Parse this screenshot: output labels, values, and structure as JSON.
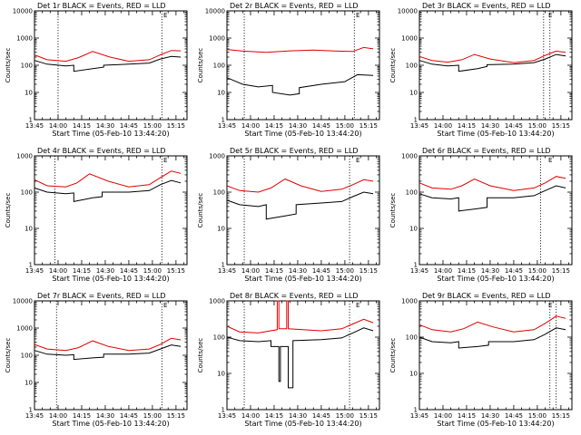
{
  "chart_data": [
    {
      "type": "line",
      "title": "Det 1r BLACK = Events, RED = LLD",
      "corner_label": "E",
      "xlabel": "Start Time (05-Feb-10 13:44:20)",
      "ylabel": "Counts/sec",
      "x_ticks": [
        "13:45",
        "14:00",
        "14:15",
        "14:30",
        "14:45",
        "15:00",
        "15:15"
      ],
      "y_ticks": [
        "1",
        "10",
        "100",
        "1000",
        "10000"
      ],
      "ylim": [
        1,
        10000
      ],
      "y_scale": "log",
      "dotted_vlines": [
        "14:00",
        "15:06"
      ],
      "series": [
        {
          "name": "Events",
          "color": "#000000",
          "x": [
            "13:45",
            "13:53",
            "14:05",
            "14:10",
            "14:10",
            "14:22",
            "14:29",
            "14:29",
            "14:45",
            "14:58",
            "15:05",
            "15:12",
            "15:18"
          ],
          "y": [
            150,
            110,
            95,
            100,
            60,
            75,
            85,
            100,
            110,
            120,
            170,
            210,
            200
          ]
        },
        {
          "name": "LLD",
          "color": "#e00000",
          "x": [
            "13:45",
            "13:53",
            "14:05",
            "14:13",
            "14:22",
            "14:33",
            "14:45",
            "14:58",
            "15:05",
            "15:12",
            "15:18"
          ],
          "y": [
            240,
            160,
            140,
            190,
            320,
            200,
            140,
            160,
            240,
            350,
            340
          ]
        }
      ]
    },
    {
      "type": "line",
      "title": "Det 2r BLACK = Events, RED = LLD",
      "corner_label": "E",
      "xlabel": "Start Time (05-Feb-10 13:44:20)",
      "ylabel": "Counts/sec",
      "x_ticks": [
        "13:45",
        "14:00",
        "14:15",
        "14:30",
        "14:45",
        "15:00",
        "15:15"
      ],
      "y_ticks": [
        "1",
        "10",
        "100",
        "1000",
        "10000"
      ],
      "ylim": [
        1,
        10000
      ],
      "y_scale": "log",
      "dotted_vlines": [
        "13:56",
        "15:06"
      ],
      "series": [
        {
          "name": "Events",
          "color": "#000000",
          "x": [
            "13:45",
            "13:55",
            "14:05",
            "14:14",
            "14:14",
            "14:25",
            "14:31",
            "14:31",
            "14:45",
            "15:00",
            "15:08",
            "15:18"
          ],
          "y": [
            35,
            20,
            16,
            18,
            10,
            8,
            9,
            15,
            20,
            25,
            45,
            42
          ]
        },
        {
          "name": "LLD",
          "color": "#e00000",
          "x": [
            "13:45",
            "13:55",
            "14:10",
            "14:25",
            "14:40",
            "14:55",
            "15:05",
            "15:12",
            "15:18"
          ],
          "y": [
            380,
            330,
            300,
            340,
            360,
            330,
            320,
            450,
            400
          ]
        }
      ]
    },
    {
      "type": "line",
      "title": "Det 3r BLACK = Events, RED = LLD",
      "corner_label": "E",
      "xlabel": "Start Time (05-Feb-10 13:44:20)",
      "ylabel": "Counts/sec",
      "x_ticks": [
        "13:45",
        "14:00",
        "14:15",
        "14:30",
        "14:45",
        "15:00",
        "15:15"
      ],
      "y_ticks": [
        "1",
        "10",
        "100",
        "1000",
        "10000"
      ],
      "ylim": [
        1,
        10000
      ],
      "y_scale": "log",
      "dotted_vlines": [
        "15:04",
        "15:08"
      ],
      "series": [
        {
          "name": "Events",
          "color": "#000000",
          "x": [
            "13:45",
            "13:53",
            "14:03",
            "14:10",
            "14:10",
            "14:22",
            "14:28",
            "14:28",
            "14:45",
            "14:58",
            "15:05",
            "15:12",
            "15:18"
          ],
          "y": [
            150,
            110,
            95,
            100,
            60,
            75,
            90,
            105,
            110,
            125,
            170,
            250,
            220
          ]
        },
        {
          "name": "LLD",
          "color": "#e00000",
          "x": [
            "13:45",
            "13:53",
            "14:03",
            "14:12",
            "14:20",
            "14:30",
            "14:45",
            "14:58",
            "15:05",
            "15:12",
            "15:18"
          ],
          "y": [
            210,
            150,
            130,
            160,
            250,
            170,
            125,
            150,
            230,
            330,
            300
          ]
        }
      ]
    },
    {
      "type": "line",
      "title": "Det 4r BLACK = Events, RED = LLD",
      "corner_label": "E",
      "xlabel": "Start Time (05-Feb-10 13:44:20)",
      "ylabel": "Counts/sec",
      "x_ticks": [
        "13:45",
        "14:00",
        "14:15",
        "14:30",
        "14:45",
        "15:00",
        "15:15"
      ],
      "y_ticks": [
        "1",
        "10",
        "100",
        "1000"
      ],
      "ylim": [
        1,
        1000
      ],
      "y_scale": "log",
      "dotted_vlines": [
        "13:58",
        "15:06"
      ],
      "series": [
        {
          "name": "Events",
          "color": "#000000",
          "x": [
            "13:45",
            "13:53",
            "14:05",
            "14:10",
            "14:10",
            "14:22",
            "14:28",
            "14:28",
            "14:45",
            "14:58",
            "15:05",
            "15:12",
            "15:18"
          ],
          "y": [
            130,
            100,
            90,
            95,
            55,
            70,
            75,
            100,
            100,
            110,
            160,
            210,
            180
          ]
        },
        {
          "name": "LLD",
          "color": "#e00000",
          "x": [
            "13:45",
            "13:53",
            "14:05",
            "14:12",
            "14:20",
            "14:32",
            "14:45",
            "14:58",
            "15:05",
            "15:12",
            "15:18"
          ],
          "y": [
            220,
            150,
            140,
            180,
            320,
            200,
            140,
            160,
            250,
            380,
            330
          ]
        }
      ]
    },
    {
      "type": "line",
      "title": "Det 5r BLACK = Events, RED = LLD",
      "corner_label": "E",
      "xlabel": "Start Time (05-Feb-10 13:44:20)",
      "ylabel": "Counts/sec",
      "x_ticks": [
        "13:45",
        "14:00",
        "14:15",
        "14:30",
        "14:45",
        "15:00",
        "15:15"
      ],
      "y_ticks": [
        "1",
        "10",
        "100",
        "1000"
      ],
      "ylim": [
        1,
        1000
      ],
      "y_scale": "log",
      "dotted_vlines": [
        "13:56",
        "15:03"
      ],
      "series": [
        {
          "name": "Events",
          "color": "#000000",
          "x": [
            "13:45",
            "13:53",
            "14:05",
            "14:10",
            "14:10",
            "14:22",
            "14:29",
            "14:29",
            "14:45",
            "14:58",
            "15:05",
            "15:12",
            "15:18"
          ],
          "y": [
            60,
            45,
            40,
            45,
            18,
            22,
            25,
            45,
            50,
            55,
            75,
            100,
            90
          ]
        },
        {
          "name": "LLD",
          "color": "#e00000",
          "x": [
            "13:45",
            "13:53",
            "14:05",
            "14:13",
            "14:22",
            "14:32",
            "14:45",
            "14:58",
            "15:05",
            "15:12",
            "15:18"
          ],
          "y": [
            150,
            110,
            100,
            130,
            230,
            150,
            105,
            120,
            160,
            220,
            200
          ]
        }
      ]
    },
    {
      "type": "line",
      "title": "Det 6r BLACK = Events, RED = LLD",
      "corner_label": "E",
      "xlabel": "Start Time (05-Feb-10 13:44:20)",
      "ylabel": "Counts/sec",
      "x_ticks": [
        "13:45",
        "14:00",
        "14:15",
        "14:30",
        "14:45",
        "15:00",
        "15:15"
      ],
      "y_ticks": [
        "1",
        "10",
        "100",
        "1000"
      ],
      "ylim": [
        1,
        1000
      ],
      "y_scale": "log",
      "dotted_vlines": [
        "15:02"
      ],
      "series": [
        {
          "name": "Events",
          "color": "#000000",
          "x": [
            "13:45",
            "13:53",
            "14:05",
            "14:10",
            "14:10",
            "14:22",
            "14:28",
            "14:28",
            "14:45",
            "14:58",
            "15:05",
            "15:12",
            "15:18"
          ],
          "y": [
            90,
            70,
            65,
            70,
            30,
            35,
            38,
            70,
            70,
            80,
            110,
            150,
            130
          ]
        },
        {
          "name": "LLD",
          "color": "#e00000",
          "x": [
            "13:45",
            "13:53",
            "14:05",
            "14:12",
            "14:20",
            "14:30",
            "14:45",
            "14:58",
            "15:05",
            "15:12",
            "15:18"
          ],
          "y": [
            180,
            130,
            120,
            150,
            230,
            150,
            110,
            130,
            180,
            270,
            240
          ]
        }
      ]
    },
    {
      "type": "line",
      "title": "Det 7r BLACK = Events, RED = LLD",
      "corner_label": "E",
      "xlabel": "Start Time (05-Feb-10 13:44:20)",
      "ylabel": "Counts/sec",
      "x_ticks": [
        "13:45",
        "14:00",
        "14:15",
        "14:30",
        "14:45",
        "15:00",
        "15:15"
      ],
      "y_ticks": [
        "1",
        "10",
        "100",
        "1000",
        "10000"
      ],
      "ylim": [
        1,
        10000
      ],
      "y_scale": "log",
      "dotted_vlines": [
        "13:59",
        "15:06"
      ],
      "series": [
        {
          "name": "Events",
          "color": "#000000",
          "x": [
            "13:45",
            "13:53",
            "14:05",
            "14:10",
            "14:10",
            "14:22",
            "14:29",
            "14:29",
            "14:45",
            "14:58",
            "15:05",
            "15:12",
            "15:18"
          ],
          "y": [
            150,
            110,
            100,
            105,
            70,
            80,
            85,
            110,
            110,
            120,
            170,
            240,
            210
          ]
        },
        {
          "name": "LLD",
          "color": "#e00000",
          "x": [
            "13:45",
            "13:53",
            "14:05",
            "14:13",
            "14:22",
            "14:32",
            "14:45",
            "14:58",
            "15:05",
            "15:12",
            "15:18"
          ],
          "y": [
            250,
            170,
            150,
            190,
            340,
            210,
            150,
            170,
            250,
            420,
            370
          ]
        }
      ]
    },
    {
      "type": "line",
      "title": "Det 8r BLACK = Events, RED = LLD",
      "corner_label": "E",
      "xlabel": "Start Time (05-Feb-10 13:44:20)",
      "ylabel": "Counts/sec",
      "x_ticks": [
        "13:45",
        "14:00",
        "14:15",
        "14:30",
        "14:45",
        "15:00",
        "15:15"
      ],
      "y_ticks": [
        "1",
        "10",
        "100",
        "1000"
      ],
      "ylim": [
        1,
        1000
      ],
      "y_scale": "log",
      "dotted_vlines": [
        "13:56",
        "15:03"
      ],
      "series": [
        {
          "name": "Events",
          "color": "#000000",
          "x": [
            "13:45",
            "13:53",
            "14:05",
            "14:13",
            "14:13",
            "14:18",
            "14:18",
            "14:19",
            "14:19",
            "14:24",
            "14:24",
            "14:27",
            "14:27",
            "14:45",
            "14:58",
            "15:05",
            "15:12",
            "15:18"
          ],
          "y": [
            100,
            80,
            75,
            80,
            55,
            55,
            6,
            6,
            55,
            55,
            4,
            4,
            80,
            85,
            95,
            130,
            180,
            150
          ]
        },
        {
          "name": "LLD",
          "color": "#e00000",
          "x": [
            "13:45",
            "13:53",
            "14:05",
            "14:17",
            "14:17",
            "14:18",
            "14:18",
            "14:23",
            "14:23",
            "14:24",
            "14:24",
            "14:45",
            "14:58",
            "15:05",
            "15:12",
            "15:18"
          ],
          "y": [
            200,
            140,
            130,
            160,
            1000,
            1000,
            170,
            170,
            1000,
            1000,
            170,
            150,
            170,
            230,
            310,
            250
          ]
        }
      ]
    },
    {
      "type": "line",
      "title": "Det 9r BLACK = Events, RED = LLD",
      "corner_label": "E",
      "xlabel": "Start Time (05-Feb-10 13:44:20)",
      "ylabel": "Counts/sec",
      "x_ticks": [
        "13:45",
        "14:00",
        "14:15",
        "14:30",
        "14:45",
        "15:00",
        "15:15"
      ],
      "y_ticks": [
        "1",
        "10",
        "100",
        "1000"
      ],
      "ylim": [
        1,
        1000
      ],
      "y_scale": "log",
      "dotted_vlines": [
        "15:08",
        "15:12"
      ],
      "series": [
        {
          "name": "Events",
          "color": "#000000",
          "x": [
            "13:45",
            "13:53",
            "14:05",
            "14:10",
            "14:10",
            "14:22",
            "14:29",
            "14:29",
            "14:45",
            "14:58",
            "15:05",
            "15:12",
            "15:18"
          ],
          "y": [
            100,
            75,
            70,
            75,
            50,
            55,
            60,
            75,
            75,
            85,
            120,
            180,
            160
          ]
        },
        {
          "name": "LLD",
          "color": "#e00000",
          "x": [
            "13:45",
            "13:53",
            "14:05",
            "14:13",
            "14:22",
            "14:32",
            "14:45",
            "14:58",
            "15:05",
            "15:12",
            "15:18"
          ],
          "y": [
            220,
            160,
            140,
            170,
            260,
            190,
            140,
            160,
            240,
            380,
            330
          ]
        }
      ]
    }
  ]
}
